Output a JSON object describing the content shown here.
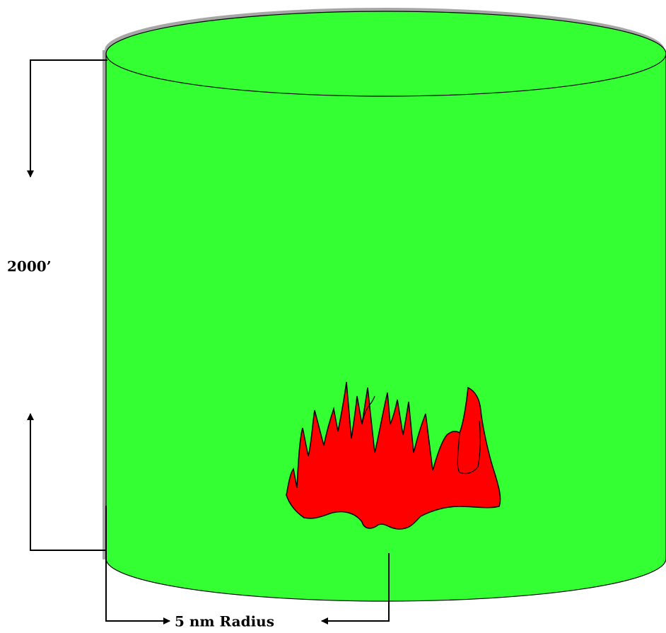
{
  "labels": {
    "height": "2000’",
    "radius": "5 nm Radius"
  }
}
